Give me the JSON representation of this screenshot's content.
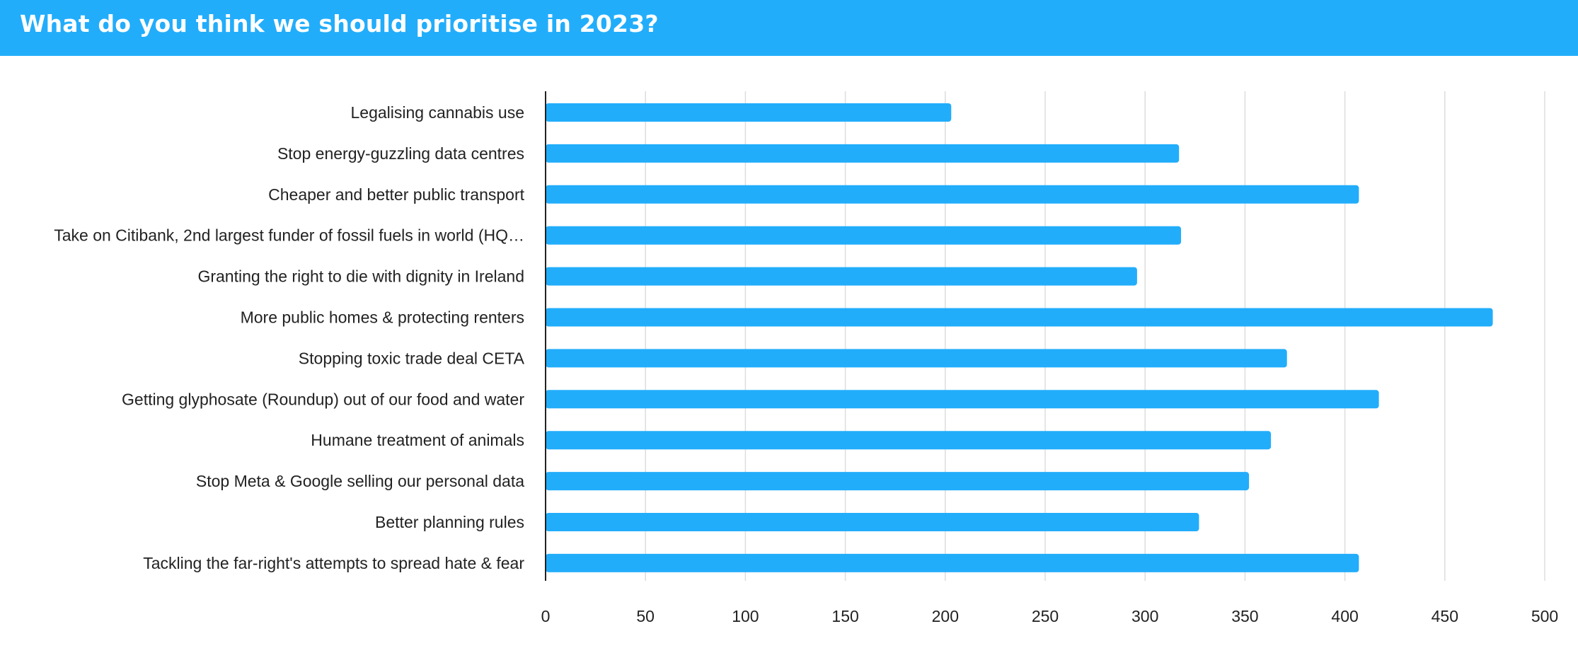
{
  "header": {
    "title": "What do you think we should prioritise in 2023?"
  },
  "colors": {
    "header_bg": "#22adfb",
    "bar": "#22adfb",
    "grid": "#dddddd",
    "axis": "#222222",
    "text": "#222222"
  },
  "chart_data": {
    "type": "bar",
    "orientation": "horizontal",
    "title": "",
    "xlabel": "",
    "ylabel": "",
    "xlim": [
      0,
      500
    ],
    "x_ticks": [
      0,
      50,
      100,
      150,
      200,
      250,
      300,
      350,
      400,
      450,
      500
    ],
    "grid": "vertical",
    "categories": [
      "Legalising cannabis use",
      "Stop energy-guzzling data centres",
      "Cheaper and better public transport",
      "Take on Citibank, 2nd largest funder of fossil fuels in world (HQ…",
      "Granting the right to die with dignity in Ireland",
      "More public homes & protecting renters",
      "Stopping toxic trade deal CETA",
      "Getting glyphosate (Roundup) out of our food and water",
      "Humane treatment of animals",
      "Stop Meta & Google selling our personal data",
      "Better planning rules",
      "Tackling the far-right's attempts to spread hate & fear"
    ],
    "values": [
      203,
      317,
      407,
      318,
      296,
      474,
      371,
      417,
      363,
      352,
      327,
      407
    ]
  }
}
